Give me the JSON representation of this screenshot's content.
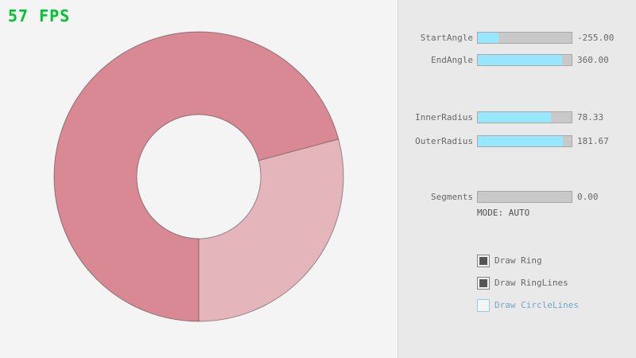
{
  "fps": {
    "text": "57 FPS",
    "color": "#00c42f"
  },
  "ring": {
    "dark_color": "#d98994",
    "light_color": "#e5b5bc",
    "outline_color": "rgba(0,0,0,0.38)"
  },
  "panel": {
    "accent_color": "#97e8ff",
    "sliders": [
      {
        "id": "start-angle",
        "label": "StartAngle",
        "value": "-255.00",
        "fill_pct": 21.7
      },
      {
        "id": "end-angle",
        "label": "EndAngle",
        "value": "360.00",
        "fill_pct": 90.0
      },
      {
        "id": "inner-radius",
        "label": "InnerRadius",
        "value": "78.33",
        "fill_pct": 78.3
      },
      {
        "id": "outer-radius",
        "label": "OuterRadius",
        "value": "181.67",
        "fill_pct": 90.8
      },
      {
        "id": "segments",
        "label": "Segments",
        "value": "0.00",
        "fill_pct": 0
      }
    ],
    "mode_text": "MODE: AUTO",
    "checkboxes": [
      {
        "label": "Draw Ring",
        "checked": true
      },
      {
        "label": "Draw RingLines",
        "checked": true
      },
      {
        "label": "Draw CircleLines",
        "checked": false
      }
    ]
  }
}
